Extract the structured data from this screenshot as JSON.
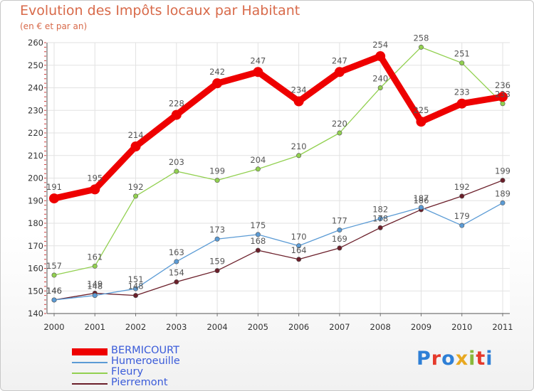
{
  "header": {
    "title": "Evolution des Impôts locaux par Habitant",
    "subtitle": "(en € et par an)"
  },
  "brand": {
    "text": "Proxiti",
    "letter_colors": [
      "#2e7fd6",
      "#e53a2c",
      "#2e7fd6",
      "#e8a820",
      "#8ab83a",
      "#e53a2c",
      "#2e7fd6"
    ]
  },
  "chart_data": {
    "type": "line",
    "title": "Evolution des Impôts locaux par Habitant",
    "subtitle": "(en € et par an)",
    "categories": [
      "2000",
      "2001",
      "2002",
      "2003",
      "2004",
      "2005",
      "2006",
      "2007",
      "2008",
      "2009",
      "2010",
      "2011"
    ],
    "ylim": [
      140,
      260
    ],
    "yticks": [
      140,
      150,
      160,
      170,
      180,
      190,
      200,
      210,
      220,
      230,
      240,
      250,
      260
    ],
    "grid": true,
    "legend_position": "bottom-left",
    "series": [
      {
        "name": "BERMICOURT",
        "color": "#ee0000",
        "values": [
          191,
          195,
          214,
          228,
          242,
          247,
          234,
          247,
          254,
          225,
          233,
          236
        ]
      },
      {
        "name": "Humeroeuille",
        "color": "#5b9bd5",
        "values": [
          146,
          148,
          151,
          163,
          173,
          175,
          170,
          177,
          182,
          187,
          179,
          189
        ]
      },
      {
        "name": "Fleury",
        "color": "#92d050",
        "values": [
          157,
          161,
          192,
          203,
          199,
          204,
          210,
          220,
          240,
          258,
          251,
          233
        ]
      },
      {
        "name": "Pierremont",
        "color": "#6b1f2a",
        "values": [
          146,
          149,
          148,
          154,
          159,
          168,
          164,
          169,
          178,
          186,
          192,
          199
        ]
      }
    ]
  }
}
